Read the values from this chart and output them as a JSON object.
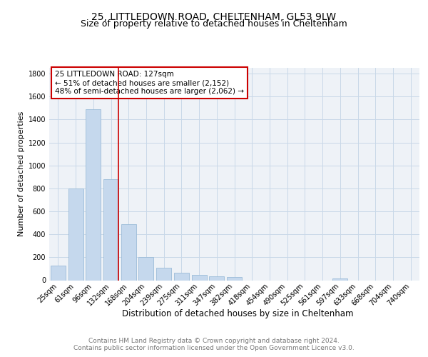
{
  "title": "25, LITTLEDOWN ROAD, CHELTENHAM, GL53 9LW",
  "subtitle": "Size of property relative to detached houses in Cheltenham",
  "xlabel": "Distribution of detached houses by size in Cheltenham",
  "ylabel": "Number of detached properties",
  "categories": [
    "25sqm",
    "61sqm",
    "96sqm",
    "132sqm",
    "168sqm",
    "204sqm",
    "239sqm",
    "275sqm",
    "311sqm",
    "347sqm",
    "382sqm",
    "418sqm",
    "454sqm",
    "490sqm",
    "525sqm",
    "561sqm",
    "597sqm",
    "633sqm",
    "668sqm",
    "704sqm",
    "740sqm"
  ],
  "values": [
    127,
    800,
    1490,
    880,
    490,
    205,
    108,
    68,
    48,
    32,
    25,
    0,
    0,
    0,
    0,
    0,
    18,
    0,
    0,
    0,
    0
  ],
  "bar_color": "#c5d8ed",
  "bar_edge_color": "#9bbcd8",
  "highlight_line_color": "#cc0000",
  "annotation_line1": "25 LITTLEDOWN ROAD: 127sqm",
  "annotation_line2": "← 51% of detached houses are smaller (2,152)",
  "annotation_line3": "48% of semi-detached houses are larger (2,062) →",
  "annotation_box_color": "#ffffff",
  "annotation_box_edge": "#cc0000",
  "ylim": [
    0,
    1850
  ],
  "yticks": [
    0,
    200,
    400,
    600,
    800,
    1000,
    1200,
    1400,
    1600,
    1800
  ],
  "grid_color": "#c8d8e8",
  "background_color": "#eef2f7",
  "footer_line1": "Contains HM Land Registry data © Crown copyright and database right 2024.",
  "footer_line2": "Contains public sector information licensed under the Open Government Licence v3.0.",
  "title_fontsize": 10,
  "subtitle_fontsize": 9,
  "xlabel_fontsize": 8.5,
  "ylabel_fontsize": 8,
  "tick_fontsize": 7,
  "annotation_fontsize": 7.5,
  "footer_fontsize": 6.5
}
